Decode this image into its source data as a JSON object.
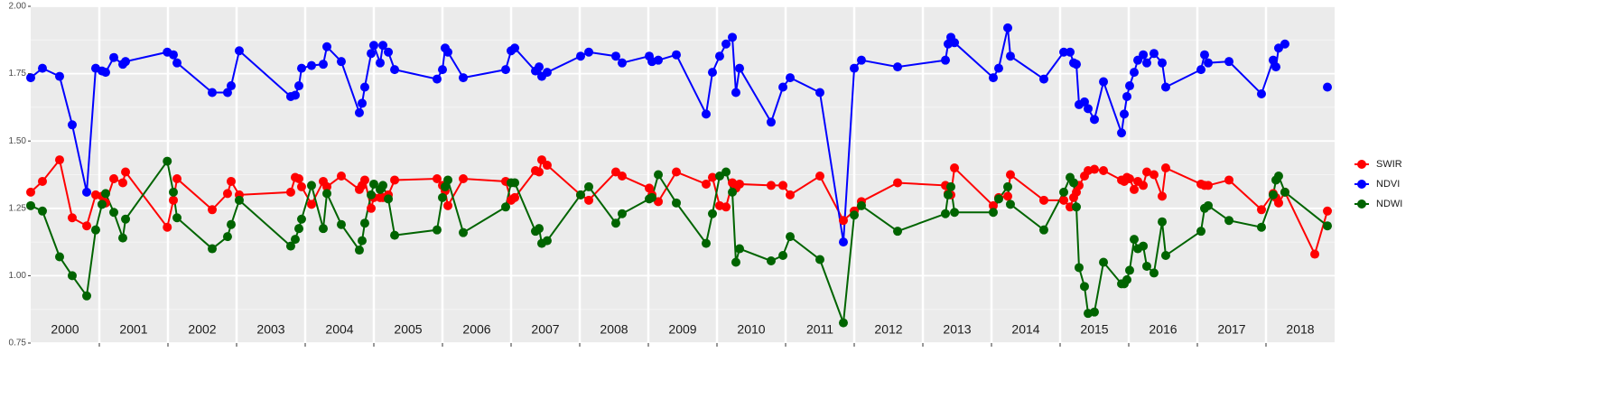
{
  "chart_data": {
    "type": "line",
    "xlim": [
      2000,
      2019
    ],
    "xticks": [
      2001,
      2002,
      2003,
      2004,
      2005,
      2006,
      2007,
      2008,
      2009,
      2010,
      2011,
      2012,
      2013,
      2014,
      2015,
      2016,
      2017,
      2018
    ],
    "categories": [
      "2000",
      "2001",
      "2002",
      "2003",
      "2004",
      "2005",
      "2006",
      "2007",
      "2008",
      "2009",
      "2010",
      "2011",
      "2012",
      "2013",
      "2014",
      "2015",
      "2016",
      "2017",
      "2018"
    ],
    "ylim": [
      0.75,
      2.0
    ],
    "yticks": [
      {
        "value": 0.75,
        "label": "0.75"
      },
      {
        "value": 1.0,
        "label": "1.00"
      },
      {
        "value": 1.25,
        "label": "1.25"
      },
      {
        "value": 1.5,
        "label": "1.50"
      },
      {
        "value": 1.75,
        "label": "1.75"
      },
      {
        "value": 2.0,
        "label": "2.00"
      }
    ],
    "grid": true,
    "legend": "right",
    "x": [
      2000.0,
      2000.171,
      2000.421,
      2000.605,
      2000.816,
      2000.947,
      2001.039,
      2001.092,
      2001.211,
      2001.342,
      2001.382,
      2001.99,
      2002.079,
      2002.132,
      2002.645,
      2002.868,
      2002.921,
      2003.039,
      2003.789,
      2003.855,
      2003.908,
      2003.947,
      2004.092,
      2004.263,
      2004.316,
      2004.526,
      2004.789,
      2004.829,
      2004.868,
      2004.961,
      2005.0,
      2005.092,
      2005.132,
      2005.211,
      2005.303,
      2005.921,
      2006.0,
      2006.039,
      2006.079,
      2006.303,
      2006.921,
      2007.0,
      2007.053,
      2007.355,
      2007.408,
      2007.447,
      2007.526,
      2008.013,
      2008.132,
      2008.526,
      2008.618,
      2009.013,
      2009.053,
      2009.145,
      2009.408,
      2009.842,
      2009.934,
      2010.039,
      2010.132,
      2010.224,
      2010.276,
      2010.329,
      2010.789,
      2010.961,
      2011.066,
      2011.5,
      2011.842,
      2012.0,
      2012.105,
      2012.632,
      2013.329,
      2013.368,
      2013.408,
      2013.461,
      2014.026,
      2014.105,
      2014.237,
      2014.276,
      2014.763,
      2015.053,
      2015.145,
      2015.197,
      2015.237,
      2015.276,
      2015.355,
      2015.408,
      2015.5,
      2015.632,
      2015.895,
      2015.934,
      2015.974,
      2016.013,
      2016.079,
      2016.132,
      2016.211,
      2016.263,
      2016.368,
      2016.487,
      2016.539,
      2017.053,
      2017.105,
      2017.158,
      2017.461,
      2017.934,
      2018.105,
      2018.145,
      2018.184,
      2018.276,
      2018.711,
      2018.895
    ],
    "series": [
      {
        "name": "SWIR",
        "color": "#ff0000",
        "values": [
          1.31,
          1.35,
          1.43,
          1.215,
          1.185,
          1.3,
          1.295,
          1.27,
          1.36,
          1.345,
          1.385,
          1.18,
          1.28,
          1.36,
          1.245,
          1.305,
          1.35,
          1.3,
          1.31,
          1.365,
          1.36,
          1.33,
          1.265,
          1.35,
          1.33,
          1.37,
          1.32,
          1.335,
          1.355,
          1.25,
          1.29,
          1.29,
          1.29,
          1.3,
          1.355,
          1.36,
          1.335,
          1.315,
          1.26,
          1.36,
          1.35,
          1.28,
          1.29,
          1.39,
          1.385,
          1.43,
          1.41,
          1.3,
          1.28,
          1.385,
          1.37,
          1.325,
          1.3,
          1.275,
          1.385,
          1.34,
          1.365,
          1.26,
          1.255,
          1.345,
          1.325,
          1.34,
          1.335,
          1.335,
          1.3,
          1.37,
          1.205,
          1.24,
          1.275,
          1.345,
          1.335,
          1.305,
          1.3,
          1.4,
          1.26,
          1.29,
          1.295,
          1.375,
          1.28,
          1.28,
          1.255,
          1.29,
          1.31,
          1.335,
          1.37,
          1.39,
          1.395,
          1.39,
          1.355,
          1.35,
          1.365,
          1.36,
          1.32,
          1.35,
          1.335,
          1.385,
          1.375,
          1.295,
          1.4,
          1.34,
          1.335,
          1.335,
          1.355,
          1.245,
          1.305,
          1.29,
          1.27,
          1.31,
          1.08,
          1.24
        ]
      },
      {
        "name": "NDVI",
        "color": "#0000ff",
        "values": [
          1.735,
          1.77,
          1.74,
          1.56,
          1.31,
          1.77,
          1.76,
          1.755,
          1.81,
          1.785,
          1.795,
          1.83,
          1.82,
          1.79,
          1.68,
          1.68,
          1.705,
          1.835,
          1.665,
          1.67,
          1.705,
          1.77,
          1.78,
          1.785,
          1.85,
          1.795,
          1.605,
          1.64,
          1.7,
          1.825,
          1.855,
          1.79,
          1.855,
          1.83,
          1.765,
          1.73,
          1.765,
          1.845,
          1.83,
          1.735,
          1.765,
          1.835,
          1.845,
          1.76,
          1.775,
          1.74,
          1.755,
          1.815,
          1.83,
          1.815,
          1.79,
          1.815,
          1.795,
          1.8,
          1.82,
          1.6,
          1.755,
          1.815,
          1.86,
          1.885,
          1.68,
          1.77,
          1.57,
          1.7,
          1.735,
          1.68,
          1.125,
          1.77,
          1.8,
          1.775,
          1.8,
          1.86,
          1.885,
          1.865,
          1.735,
          1.77,
          1.92,
          1.815,
          1.73,
          1.83,
          1.83,
          1.79,
          1.785,
          1.635,
          1.645,
          1.62,
          1.58,
          1.72,
          1.53,
          1.6,
          1.665,
          1.705,
          1.755,
          1.8,
          1.82,
          1.79,
          1.825,
          1.79,
          1.7,
          1.765,
          1.82,
          1.79,
          1.795,
          1.675,
          1.8,
          1.775,
          1.845,
          1.86,
          null,
          1.7
        ]
      },
      {
        "name": "NDWI",
        "color": "#006400",
        "x": [
          2000.0,
          2000.171,
          2000.421,
          2000.605,
          2000.816,
          2000.947,
          2001.039,
          2001.092,
          2001.211,
          2001.342,
          2001.382,
          2001.99,
          2002.079,
          2002.132,
          2002.645,
          2002.868,
          2002.921,
          2003.039,
          2003.789,
          2003.855,
          2003.908,
          2003.947,
          2004.092,
          2004.263,
          2004.316,
          2004.526,
          2004.789,
          2004.829,
          2004.868,
          2004.961,
          2005.0,
          2005.092,
          2005.132,
          2005.211,
          2005.303,
          2005.921,
          2006.0,
          2006.039,
          2006.079,
          2006.303,
          2006.921,
          2007.0,
          2007.053,
          2007.355,
          2007.408,
          2007.447,
          2007.526,
          2008.013,
          2008.132,
          2008.526,
          2008.618,
          2009.013,
          2009.053,
          2009.145,
          2009.408,
          2009.842,
          2009.934,
          2010.039,
          2010.132,
          2010.224,
          2010.276,
          2010.329,
          2010.789,
          2010.961,
          2011.066,
          2011.5,
          2011.842,
          2012.0,
          2012.105,
          2012.632,
          2013.329,
          2013.368,
          2013.408,
          2013.461,
          2014.026,
          2014.105,
          2014.237,
          2014.276,
          2014.763,
          2015.053,
          2015.145,
          2015.197,
          2015.237,
          2015.276,
          2015.355,
          2015.408,
          2015.5,
          2015.632,
          2015.895,
          2015.934,
          2015.974,
          2016.013,
          2016.079,
          2016.132,
          2016.211,
          2016.263,
          2016.368,
          2016.487,
          2016.539,
          2017.053,
          2017.105,
          2017.158,
          2017.461,
          2017.934,
          2018.105,
          2018.145,
          2018.184,
          2018.276,
          2018.895
        ],
        "values": [
          1.26,
          1.24,
          1.07,
          1.0,
          0.925,
          1.17,
          1.265,
          1.305,
          1.235,
          1.14,
          1.21,
          1.425,
          1.31,
          1.215,
          1.1,
          1.145,
          1.19,
          1.28,
          1.11,
          1.135,
          1.175,
          1.21,
          1.335,
          1.175,
          1.305,
          1.19,
          1.095,
          1.13,
          1.195,
          1.3,
          1.34,
          1.32,
          1.335,
          1.285,
          1.15,
          1.17,
          1.29,
          1.33,
          1.355,
          1.16,
          1.255,
          1.345,
          1.345,
          1.165,
          1.175,
          1.12,
          1.13,
          1.3,
          1.33,
          1.195,
          1.23,
          1.285,
          1.29,
          1.375,
          1.27,
          1.12,
          1.23,
          1.37,
          1.385,
          1.31,
          1.05,
          1.1,
          1.055,
          1.075,
          1.145,
          1.06,
          0.825,
          1.225,
          1.26,
          1.165,
          1.23,
          1.3,
          1.33,
          1.235,
          1.235,
          1.285,
          1.33,
          1.265,
          1.17,
          1.31,
          1.365,
          1.345,
          1.255,
          1.03,
          0.96,
          0.86,
          0.865,
          1.05,
          0.97,
          0.97,
          0.985,
          1.02,
          1.135,
          1.1,
          1.11,
          1.035,
          1.01,
          1.2,
          1.075,
          1.165,
          1.25,
          1.26,
          1.205,
          1.18,
          1.3,
          1.355,
          1.37,
          1.31,
          1.185
        ]
      }
    ]
  }
}
